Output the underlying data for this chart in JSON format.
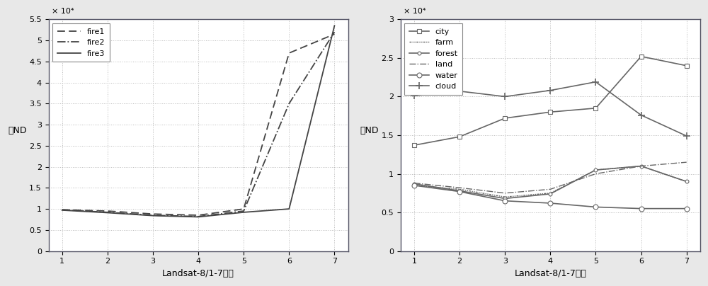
{
  "x": [
    1,
    2,
    3,
    4,
    5,
    6,
    7
  ],
  "fire1": [
    9800,
    9500,
    8800,
    8500,
    10000,
    47000,
    51500
  ],
  "fire2": [
    9800,
    9200,
    8500,
    8200,
    9500,
    35000,
    52000
  ],
  "fire3": [
    9700,
    9100,
    8400,
    8100,
    9200,
    10000,
    53500
  ],
  "city": [
    13700,
    14800,
    17200,
    18000,
    18500,
    25200,
    24000
  ],
  "farm": [
    8500,
    8000,
    7000,
    7500,
    10500,
    11000,
    9000
  ],
  "forest": [
    8700,
    7800,
    6800,
    7400,
    10500,
    11000,
    9000
  ],
  "land": [
    8800,
    8200,
    7500,
    8000,
    10000,
    11000,
    11500
  ],
  "water": [
    8500,
    7700,
    6500,
    6200,
    5700,
    5500,
    5500
  ],
  "cloud": [
    20100,
    20700,
    20000,
    20800,
    21900,
    17600,
    14900
  ],
  "xlabel": "Landsat-8/1-7波段",
  "ylabel_left": "値ND",
  "ylabel_right": "値ND",
  "ylim1": [
    0,
    55000
  ],
  "ylim2": [
    0,
    30000
  ],
  "yticks1": [
    0,
    5000,
    10000,
    15000,
    20000,
    25000,
    30000,
    35000,
    40000,
    45000,
    50000,
    55000
  ],
  "yticks2": [
    0,
    5000,
    10000,
    15000,
    20000,
    25000,
    30000
  ],
  "ytick_labels1": [
    "0",
    "0.5",
    "1",
    "1.5",
    "2",
    "2.5",
    "3",
    "3.5",
    "4",
    "4.5",
    "5",
    "5.5"
  ],
  "ytick_labels2": [
    "0",
    "0.5",
    "1",
    "1.5",
    "2",
    "2.5",
    "3"
  ],
  "exponent_label": "× 10⁴",
  "bg_color": "#ffffff",
  "fig_bg_color": "#e8e8e8",
  "border_color": "#555566",
  "line_color_dark": "#444444",
  "line_color_med": "#666666",
  "grid_color": "#aaaaaa"
}
